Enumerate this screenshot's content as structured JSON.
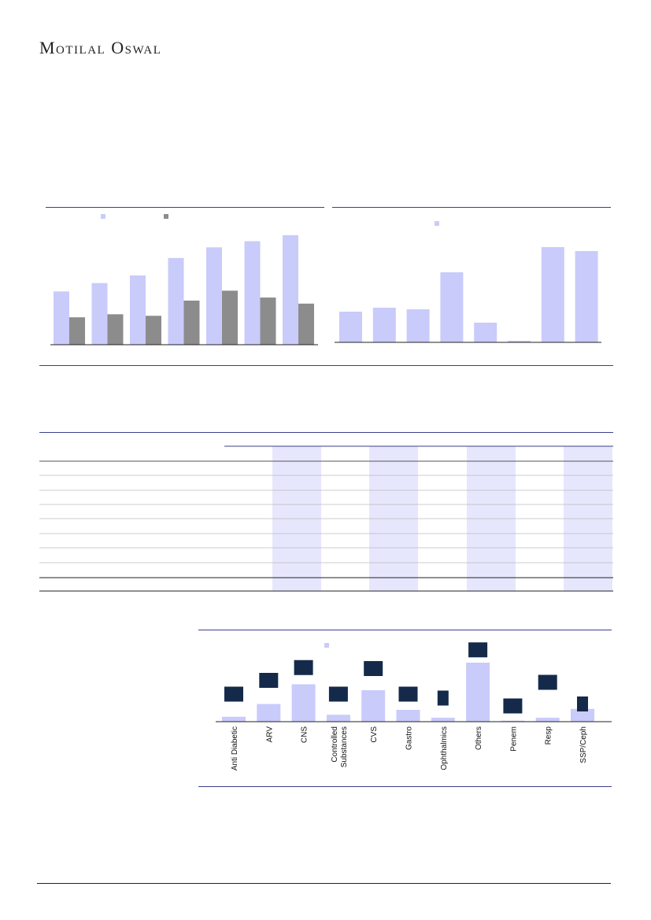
{
  "header": {
    "brand": "Motilal Oswal"
  },
  "colors": {
    "primary_bar": "#c9cbfb",
    "secondary_bar": "#8c8c8c",
    "marker": "#152a4a",
    "rule": "#3b3f8c",
    "shade": "#e6e7fd"
  },
  "chart_data": [
    {
      "type": "bar",
      "categories": [
        "",
        "",
        "",
        "",
        "",
        "",
        ""
      ],
      "series": [
        {
          "values": [
            70,
            81,
            91,
            114,
            128,
            136,
            144
          ]
        },
        {
          "values": [
            36,
            40,
            38,
            58,
            71,
            62,
            54
          ]
        }
      ],
      "ylim": [
        0,
        150
      ]
    },
    {
      "type": "bar",
      "categories": [
        "",
        "",
        "",
        "",
        "",
        "",
        "",
        ""
      ],
      "values": [
        39,
        44,
        42,
        89,
        25,
        2,
        121,
        116
      ],
      "ylim": [
        0,
        130
      ]
    },
    {
      "type": "bar",
      "categories": [
        "Anti Diabetic",
        "ARV",
        "CNS",
        "Controlled Substances",
        "CVS",
        "Gastro",
        "Ophthalmics",
        "Others",
        "Penem",
        "Resp",
        "SSP/Ceph"
      ],
      "values": [
        5,
        18,
        38,
        7,
        32,
        12,
        4,
        60,
        1,
        4,
        13
      ],
      "markers": [
        28,
        42,
        55,
        28,
        54,
        28,
        24,
        73,
        16,
        40,
        18
      ],
      "ylim": [
        0,
        80
      ]
    }
  ],
  "table": {
    "rows": 9,
    "shaded_columns": 4
  }
}
